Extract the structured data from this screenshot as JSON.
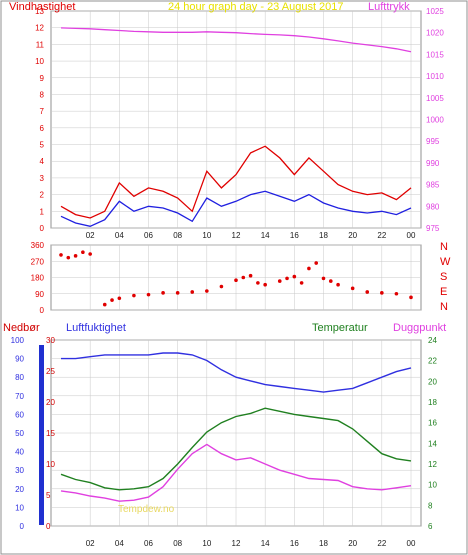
{
  "colors": {
    "wind_red": "#e00000",
    "wind_blue": "#2020e0",
    "pressure": "#e040e0",
    "title_yellow": "#e8e000",
    "dir_red": "#e00000",
    "humidity": "#3030e0",
    "temperature": "#208020",
    "dewpoint": "#e040e0",
    "rain_label": "#d00000",
    "grid": "#c8c8c8",
    "frame": "#909090"
  },
  "header": {
    "left_label": "Vindhastighet",
    "title": "24 hour graph day - 23 August 2017",
    "right_label": "Lufttrykk"
  },
  "direction_labels": [
    "N",
    "W",
    "S",
    "E",
    "N"
  ],
  "bottom_header": {
    "rain": "Nedbør",
    "humidity": "Luftfuktighet",
    "temperature": "Temperatur",
    "dewpoint": "Duggpunkt"
  },
  "x_ticks": [
    "02",
    "04",
    "06",
    "08",
    "10",
    "12",
    "14",
    "16",
    "18",
    "20",
    "22",
    "00"
  ],
  "watermark": "Tempdew.no",
  "chart_data": [
    {
      "type": "line",
      "x": [
        0,
        1,
        2,
        3,
        4,
        5,
        6,
        7,
        8,
        9,
        10,
        11,
        12,
        13,
        14,
        15,
        16,
        17,
        18,
        19,
        20,
        21,
        22,
        23,
        24
      ],
      "ylim_left": [
        0,
        13
      ],
      "ylim_right": [
        975,
        1025
      ],
      "left_ticks": [
        "0",
        "1",
        "2",
        "3",
        "4",
        "5",
        "6",
        "7",
        "8",
        "9",
        "10",
        "11",
        "12",
        "13"
      ],
      "right_ticks": [
        "975",
        "980",
        "985",
        "990",
        "995",
        "1000",
        "1005",
        "1010",
        "1015",
        "1020",
        "1025"
      ],
      "series": [
        {
          "name": "Lufttrykk",
          "axis": "right",
          "values": [
            1021.1,
            1021.0,
            1020.9,
            1020.7,
            1020.5,
            1020.3,
            1020.2,
            1020.1,
            1020.1,
            1020.1,
            1020.2,
            1020.1,
            1020.0,
            1019.8,
            1019.6,
            1019.5,
            1019.3,
            1019.0,
            1018.6,
            1018.1,
            1017.6,
            1017.2,
            1016.8,
            1016.3,
            1015.6
          ]
        },
        {
          "name": "Vindhastighet",
          "axis": "left",
          "values": [
            1.3,
            0.8,
            0.6,
            1.0,
            2.7,
            1.9,
            2.4,
            2.2,
            1.8,
            1.0,
            3.4,
            2.4,
            3.2,
            4.5,
            4.9,
            4.2,
            3.2,
            4.2,
            3.4,
            2.6,
            2.2,
            2.0,
            2.1,
            1.7,
            2.4
          ]
        },
        {
          "axis": "left",
          "values": [
            0.7,
            0.3,
            0.1,
            0.5,
            1.6,
            1.0,
            1.3,
            1.2,
            0.9,
            0.4,
            1.8,
            1.3,
            1.6,
            2.0,
            2.2,
            1.9,
            1.6,
            2.0,
            1.5,
            1.2,
            1.0,
            0.9,
            1.0,
            0.8,
            1.2
          ]
        }
      ]
    },
    {
      "type": "scatter",
      "ylim": [
        0,
        360
      ],
      "y_ticks": [
        "0",
        "90",
        "180",
        "270",
        "360"
      ],
      "x": [
        0,
        0.5,
        1,
        1.5,
        2,
        3,
        3.5,
        4,
        5,
        6,
        7,
        8,
        9,
        10,
        11,
        12,
        12.5,
        13,
        13.5,
        14,
        15,
        15.5,
        16,
        16.5,
        17,
        17.5,
        18,
        18.5,
        19,
        20,
        21,
        22,
        23,
        24
      ],
      "values": [
        305,
        290,
        300,
        320,
        310,
        30,
        55,
        65,
        80,
        85,
        95,
        95,
        100,
        105,
        130,
        165,
        180,
        190,
        150,
        140,
        160,
        175,
        185,
        150,
        230,
        260,
        175,
        160,
        140,
        120,
        100,
        95,
        90,
        70
      ]
    },
    {
      "type": "line",
      "x": [
        0,
        1,
        2,
        3,
        4,
        5,
        6,
        7,
        8,
        9,
        10,
        11,
        12,
        13,
        14,
        15,
        16,
        17,
        18,
        19,
        20,
        21,
        22,
        23,
        24
      ],
      "ylim_humidity": [
        0,
        100
      ],
      "ylim_temperature": [
        6,
        24
      ],
      "humidity_ticks": [
        "0",
        "10",
        "20",
        "30",
        "40",
        "50",
        "60",
        "70",
        "80",
        "90",
        "100"
      ],
      "rain_ticks": [
        "0",
        "5",
        "10",
        "15",
        "20",
        "25",
        "30"
      ],
      "temp_ticks": [
        "6",
        "8",
        "10",
        "12",
        "14",
        "16",
        "18",
        "20",
        "22",
        "24"
      ],
      "series": [
        {
          "name": "Luftfuktighet",
          "axis": "humidity",
          "values": [
            90,
            90,
            91,
            92,
            92,
            92,
            92,
            93,
            93,
            92,
            89,
            84,
            80,
            78,
            76,
            75,
            74,
            73,
            72,
            73,
            74,
            77,
            80,
            83,
            85
          ]
        },
        {
          "name": "Temperatur",
          "axis": "temperature",
          "values": [
            11.0,
            10.5,
            10.2,
            9.7,
            9.5,
            9.6,
            9.8,
            10.6,
            12.0,
            13.6,
            15.1,
            16.0,
            16.6,
            16.9,
            17.4,
            17.1,
            16.8,
            16.6,
            16.4,
            16.2,
            15.4,
            14.2,
            13.0,
            12.5,
            12.3
          ]
        },
        {
          "name": "Duggpunkt",
          "axis": "temperature",
          "values": [
            9.4,
            9.2,
            8.9,
            8.7,
            8.4,
            8.5,
            8.8,
            9.8,
            11.5,
            13.0,
            13.9,
            13.0,
            12.4,
            12.6,
            12.0,
            11.4,
            11.0,
            10.6,
            10.5,
            10.4,
            9.8,
            9.6,
            9.5,
            9.7,
            9.9
          ]
        }
      ]
    }
  ]
}
